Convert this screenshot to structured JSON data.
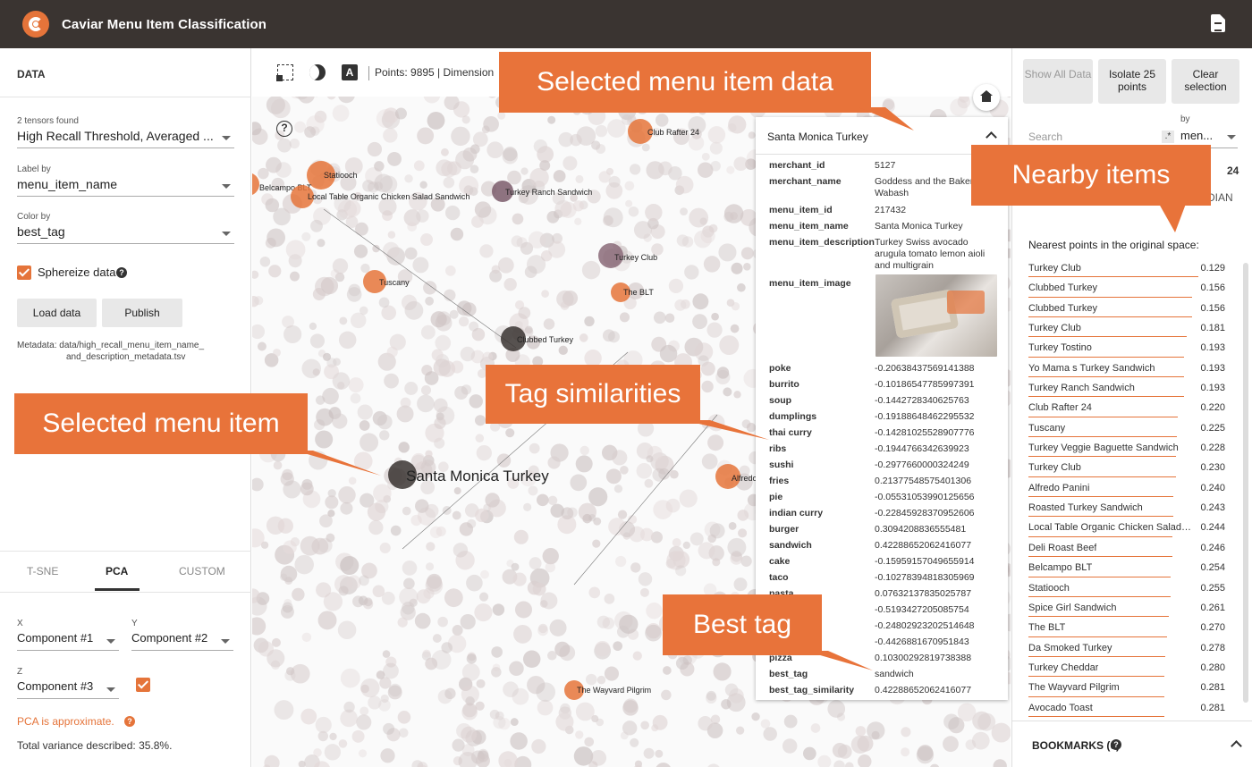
{
  "app": {
    "title": "Caviar Menu Item Classification"
  },
  "data_panel": {
    "section_title": "DATA",
    "tensors_label": "2 tensors found",
    "tensor_value": "High Recall Threshold, Averaged ...",
    "label_by_label": "Label by",
    "label_by_value": "menu_item_name",
    "color_by_label": "Color by",
    "color_by_value": "best_tag",
    "sphereize_label": "Sphereize data",
    "sphereize_checked": true,
    "load_button": "Load data",
    "publish_button": "Publish",
    "metadata_line1": "Metadata: data/high_recall_menu_item_name_",
    "metadata_line2": "and_description_metadata.tsv"
  },
  "projection": {
    "tabs": [
      "T-SNE",
      "PCA",
      "CUSTOM"
    ],
    "active_tab": "PCA",
    "x_label": "X",
    "x_value": "Component #1",
    "y_label": "Y",
    "y_value": "Component #2",
    "z_label": "Z",
    "z_value": "Component #3",
    "z_enabled": true,
    "approx_text": "PCA is approximate.",
    "variance_text": "Total variance described: 35.8%."
  },
  "plot": {
    "stats_text": "Points: 9895 | Dimension",
    "labels": [
      "Statiooch",
      "Belcampo BLT",
      "Local Table Organic Chicken Salad Sandwich",
      "Turkey Ranch Sandwich",
      "Club Rafter 24",
      "Turkey Club",
      "Tuscany",
      "The BLT",
      "Clubbed Turkey",
      "Santa Monica Turkey",
      "Alfredo",
      "The Wayvard Pilgrim"
    ]
  },
  "info_panel": {
    "title": "Santa Monica Turkey",
    "rows": [
      {
        "key": "merchant_id",
        "value": "5127"
      },
      {
        "key": "merchant_name",
        "value": "Goddess and the Baker Wabash"
      },
      {
        "key": "menu_item_id",
        "value": "217432"
      },
      {
        "key": "menu_item_name",
        "value": "Santa Monica Turkey"
      },
      {
        "key": "menu_item_description",
        "value": "Turkey Swiss avocado arugula tomato lemon aioli and multigrain"
      },
      {
        "key": "menu_item_image",
        "value": ""
      },
      {
        "key": "poke",
        "value": "-0.20638437569141388"
      },
      {
        "key": "burrito",
        "value": "-0.10186547785997391"
      },
      {
        "key": "soup",
        "value": "-0.1442728340625763"
      },
      {
        "key": "dumplings",
        "value": "-0.19188648462295532"
      },
      {
        "key": "thai curry",
        "value": "-0.14281025528907776"
      },
      {
        "key": "ribs",
        "value": "-0.1944766342639923"
      },
      {
        "key": "sushi",
        "value": "-0.2977660000324249"
      },
      {
        "key": "fries",
        "value": "0.21377548575401306"
      },
      {
        "key": "pie",
        "value": "-0.05531053990125656"
      },
      {
        "key": "indian curry",
        "value": "-0.22845928370952606"
      },
      {
        "key": "burger",
        "value": "0.3094208836555481"
      },
      {
        "key": "sandwich",
        "value": "0.42288652062416077"
      },
      {
        "key": "cake",
        "value": "-0.15959157049655914"
      },
      {
        "key": "taco",
        "value": "-0.10278394818305969"
      },
      {
        "key": "pasta",
        "value": "0.07632137835025787"
      },
      {
        "key": "",
        "value": "-0.5193427205085754"
      },
      {
        "key": "",
        "value": "-0.24802923202514648"
      },
      {
        "key": "",
        "value": "-0.4426881670951843"
      },
      {
        "key": "pizza",
        "value": "0.10300292819738388"
      },
      {
        "key": "best_tag",
        "value": "sandwich"
      },
      {
        "key": "best_tag_similarity",
        "value": "0.42288652062416077"
      }
    ]
  },
  "right_panel": {
    "show_all": "Show All Data",
    "isolate": "Isolate 25 points",
    "clear": "Clear selection",
    "search_placeholder": "Search",
    "regex": ".*",
    "by_label": "by",
    "by_value": "men...",
    "count": "24",
    "partial_text": "DIAN",
    "nearest_title": "Nearest points in the original space:",
    "neighbors": [
      {
        "name": "Turkey Club",
        "dist": "0.129"
      },
      {
        "name": "Clubbed Turkey",
        "dist": "0.156"
      },
      {
        "name": "Clubbed Turkey",
        "dist": "0.156"
      },
      {
        "name": "Turkey Club",
        "dist": "0.181"
      },
      {
        "name": "Turkey Tostino",
        "dist": "0.193"
      },
      {
        "name": "Yo Mama s Turkey Sandwich",
        "dist": "0.193"
      },
      {
        "name": "Turkey Ranch Sandwich",
        "dist": "0.193"
      },
      {
        "name": "Club Rafter 24",
        "dist": "0.220"
      },
      {
        "name": "Tuscany",
        "dist": "0.225"
      },
      {
        "name": "Turkey Veggie Baguette Sandwich",
        "dist": "0.228"
      },
      {
        "name": "Turkey Club",
        "dist": "0.230"
      },
      {
        "name": "Alfredo Panini",
        "dist": "0.240"
      },
      {
        "name": "Roasted Turkey Sandwich",
        "dist": "0.243"
      },
      {
        "name": "Local Table Organic Chicken Salad S...",
        "dist": "0.244"
      },
      {
        "name": "Deli Roast Beef",
        "dist": "0.246"
      },
      {
        "name": "Belcampo BLT",
        "dist": "0.254"
      },
      {
        "name": "Statiooch",
        "dist": "0.255"
      },
      {
        "name": "Spice Girl Sandwich",
        "dist": "0.261"
      },
      {
        "name": "The BLT",
        "dist": "0.270"
      },
      {
        "name": "Da Smoked Turkey",
        "dist": "0.278"
      },
      {
        "name": "Turkey Cheddar",
        "dist": "0.280"
      },
      {
        "name": "The Wayvard Pilgrim",
        "dist": "0.281"
      },
      {
        "name": "Avocado Toast",
        "dist": "0.281"
      }
    ],
    "bookmarks": "BOOKMARKS (0)"
  },
  "callouts": {
    "selected_data": "Selected menu item data",
    "nearby": "Nearby items",
    "tag_sim": "Tag similarities",
    "selected_item": "Selected menu item",
    "best_tag": "Best tag"
  },
  "colors": {
    "accent": "#e5743a",
    "header": "#3a3431",
    "callout": "#e8733a"
  }
}
